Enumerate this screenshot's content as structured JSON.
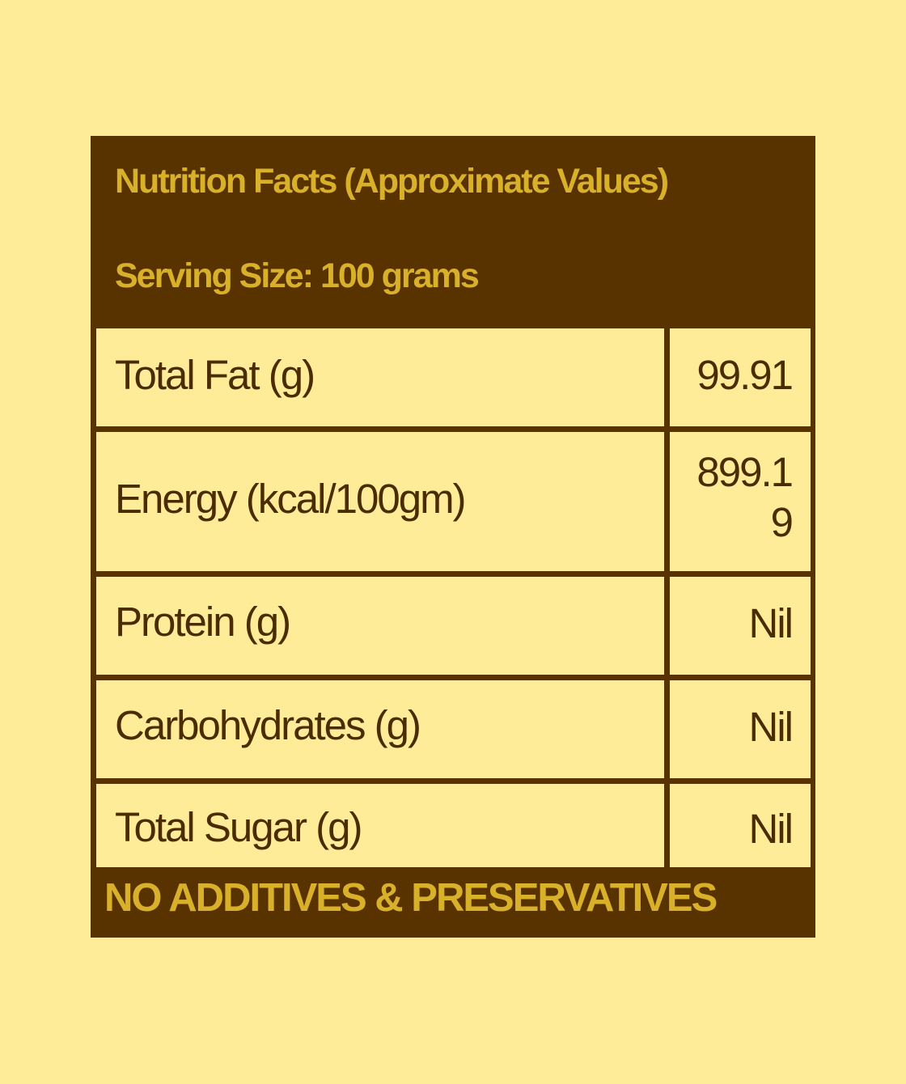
{
  "header": {
    "title": "Nutrition Facts (Approximate Values)",
    "serving_size": "Serving Size: 100 grams"
  },
  "rows": [
    {
      "label": "Total Fat (g)",
      "value": "99.91"
    },
    {
      "label": "Energy (kcal/100gm)",
      "value_line1": "899.1",
      "value_line2": "9"
    },
    {
      "label": "Protein (g)",
      "value": "Nil"
    },
    {
      "label": "Carbohydrates (g)",
      "value": "Nil"
    },
    {
      "label": "Total Sugar (g)",
      "value": "Nil"
    }
  ],
  "footer": {
    "text": "NO ADDITIVES & PRESERVATIVES"
  },
  "colors": {
    "background": "#FFEC98",
    "panel": "#583300",
    "accent": "#D8B02A",
    "text": "#4A2C00"
  }
}
